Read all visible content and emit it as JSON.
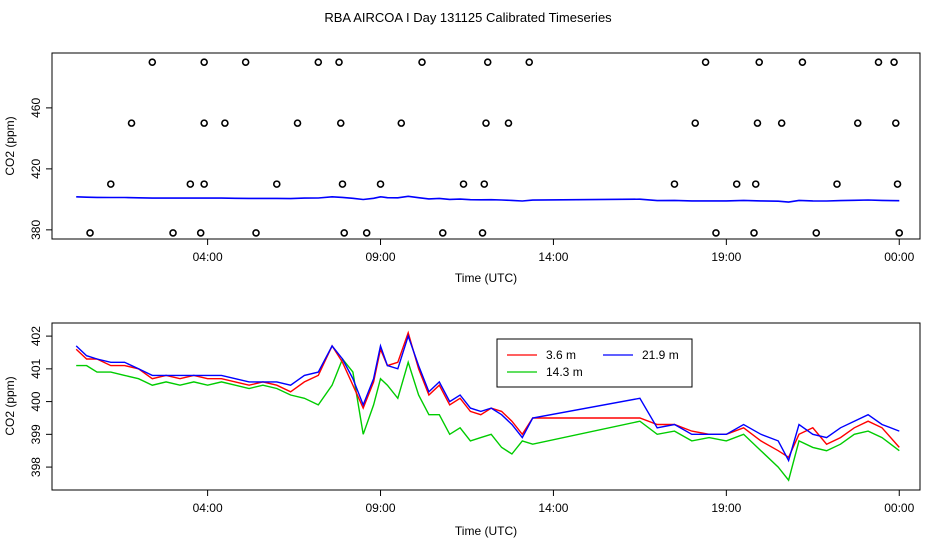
{
  "title": "RBA AIRCOA I  Day 131125  Calibrated Timeseries",
  "chart_data": [
    {
      "type": "scatter+line",
      "xlabel": "Time (UTC)",
      "ylabel": "CO2 (ppm)",
      "xlim": [
        -0.5,
        24.6
      ],
      "ylim": [
        374,
        496
      ],
      "x_ticks": [
        4,
        9,
        14,
        19,
        24
      ],
      "x_tick_labels": [
        "04:00",
        "09:00",
        "14:00",
        "19:00",
        "00:00"
      ],
      "y_ticks": [
        380,
        420,
        460
      ],
      "y_tick_labels": [
        "380",
        "420",
        "460"
      ],
      "points": [
        {
          "x": 0.6,
          "y": 378
        },
        {
          "x": 1.2,
          "y": 410
        },
        {
          "x": 1.8,
          "y": 450
        },
        {
          "x": 2.4,
          "y": 490
        },
        {
          "x": 3.0,
          "y": 378
        },
        {
          "x": 3.5,
          "y": 410
        },
        {
          "x": 3.8,
          "y": 378
        },
        {
          "x": 3.9,
          "y": 410
        },
        {
          "x": 3.9,
          "y": 450
        },
        {
          "x": 3.9,
          "y": 490
        },
        {
          "x": 4.5,
          "y": 450
        },
        {
          "x": 5.1,
          "y": 490
        },
        {
          "x": 5.4,
          "y": 378
        },
        {
          "x": 6.0,
          "y": 410
        },
        {
          "x": 6.6,
          "y": 450
        },
        {
          "x": 7.2,
          "y": 490
        },
        {
          "x": 7.8,
          "y": 490
        },
        {
          "x": 7.85,
          "y": 450
        },
        {
          "x": 7.9,
          "y": 410
        },
        {
          "x": 7.95,
          "y": 378
        },
        {
          "x": 8.6,
          "y": 378
        },
        {
          "x": 9.0,
          "y": 410
        },
        {
          "x": 9.6,
          "y": 450
        },
        {
          "x": 10.2,
          "y": 490
        },
        {
          "x": 10.8,
          "y": 378
        },
        {
          "x": 11.4,
          "y": 410
        },
        {
          "x": 12.0,
          "y": 410
        },
        {
          "x": 12.05,
          "y": 450
        },
        {
          "x": 12.1,
          "y": 490
        },
        {
          "x": 11.95,
          "y": 378
        },
        {
          "x": 12.7,
          "y": 450
        },
        {
          "x": 13.3,
          "y": 490
        },
        {
          "x": 17.5,
          "y": 410
        },
        {
          "x": 18.1,
          "y": 450
        },
        {
          "x": 18.4,
          "y": 490
        },
        {
          "x": 18.7,
          "y": 378
        },
        {
          "x": 19.3,
          "y": 410
        },
        {
          "x": 19.8,
          "y": 378
        },
        {
          "x": 19.85,
          "y": 410
        },
        {
          "x": 19.9,
          "y": 450
        },
        {
          "x": 19.95,
          "y": 490
        },
        {
          "x": 20.6,
          "y": 450
        },
        {
          "x": 21.2,
          "y": 490
        },
        {
          "x": 21.6,
          "y": 378
        },
        {
          "x": 22.2,
          "y": 410
        },
        {
          "x": 22.8,
          "y": 450
        },
        {
          "x": 23.4,
          "y": 490
        },
        {
          "x": 23.85,
          "y": 490
        },
        {
          "x": 23.9,
          "y": 450
        },
        {
          "x": 23.95,
          "y": 410
        },
        {
          "x": 24.0,
          "y": 378
        }
      ],
      "series_color": "#0000ff"
    },
    {
      "type": "line",
      "xlabel": "Time (UTC)",
      "ylabel": "CO2 (ppm)",
      "xlim": [
        -0.5,
        24.6
      ],
      "ylim": [
        397.3,
        402.4
      ],
      "x_ticks": [
        4,
        9,
        14,
        19,
        24
      ],
      "x_tick_labels": [
        "04:00",
        "09:00",
        "14:00",
        "19:00",
        "00:00"
      ],
      "y_ticks": [
        398,
        399,
        400,
        401,
        402
      ],
      "y_tick_labels": [
        "398",
        "399",
        "400",
        "401",
        "402"
      ],
      "legend": [
        {
          "label": "3.6 m",
          "color": "#ff0000"
        },
        {
          "label": "21.9 m",
          "color": "#0000ff"
        },
        {
          "label": "14.3 m",
          "color": "#00cc00"
        }
      ],
      "series": [
        {
          "name": "3.6 m",
          "color": "#ff0000",
          "x": [
            0.2,
            0.5,
            0.8,
            1.2,
            1.6,
            2.0,
            2.4,
            2.8,
            3.2,
            3.6,
            4.0,
            4.4,
            4.8,
            5.2,
            5.6,
            6.0,
            6.4,
            6.8,
            7.2,
            7.6,
            7.9,
            8.2,
            8.5,
            8.8,
            9.0,
            9.2,
            9.5,
            9.8,
            10.1,
            10.4,
            10.7,
            11.0,
            11.3,
            11.6,
            11.9,
            12.2,
            12.5,
            12.8,
            13.1,
            13.4,
            16.5,
            17.0,
            17.5,
            18.0,
            18.5,
            19.0,
            19.5,
            20.0,
            20.5,
            20.8,
            21.1,
            21.5,
            21.9,
            22.3,
            22.7,
            23.1,
            23.5,
            24.0
          ],
          "values": [
            401.6,
            401.3,
            401.3,
            401.1,
            401.1,
            401.0,
            400.7,
            400.8,
            400.7,
            400.8,
            400.7,
            400.7,
            400.6,
            400.5,
            400.6,
            400.5,
            400.3,
            400.6,
            400.8,
            401.7,
            401.2,
            400.5,
            399.8,
            400.6,
            401.6,
            401.1,
            401.2,
            402.1,
            401.0,
            400.2,
            400.5,
            399.9,
            400.1,
            399.7,
            399.6,
            399.8,
            399.7,
            399.4,
            399.0,
            399.5,
            399.5,
            399.3,
            399.3,
            399.1,
            399.0,
            399.0,
            399.2,
            398.8,
            398.5,
            398.3,
            399.0,
            399.2,
            398.7,
            398.9,
            399.2,
            399.4,
            399.2,
            398.6
          ]
        },
        {
          "name": "21.9 m",
          "color": "#0000ff",
          "x": [
            0.2,
            0.5,
            0.8,
            1.2,
            1.6,
            2.0,
            2.4,
            2.8,
            3.2,
            3.6,
            4.0,
            4.4,
            4.8,
            5.2,
            5.6,
            6.0,
            6.4,
            6.8,
            7.2,
            7.6,
            7.9,
            8.2,
            8.5,
            8.8,
            9.0,
            9.2,
            9.5,
            9.8,
            10.1,
            10.4,
            10.7,
            11.0,
            11.3,
            11.6,
            11.9,
            12.2,
            12.5,
            12.8,
            13.1,
            13.4,
            16.5,
            17.0,
            17.5,
            18.0,
            18.5,
            19.0,
            19.5,
            20.0,
            20.5,
            20.8,
            21.1,
            21.5,
            21.9,
            22.3,
            22.7,
            23.1,
            23.5,
            24.0
          ],
          "values": [
            401.7,
            401.4,
            401.3,
            401.2,
            401.2,
            401.0,
            400.8,
            400.8,
            400.8,
            400.8,
            400.8,
            400.8,
            400.7,
            400.6,
            400.6,
            400.6,
            400.5,
            400.8,
            400.9,
            401.7,
            401.3,
            400.7,
            399.9,
            400.7,
            401.7,
            401.1,
            401.0,
            402.0,
            401.1,
            400.3,
            400.6,
            400.0,
            400.2,
            399.8,
            399.7,
            399.8,
            399.6,
            399.3,
            398.9,
            399.5,
            400.1,
            399.2,
            399.3,
            399.0,
            399.0,
            399.0,
            399.3,
            399.0,
            398.8,
            398.2,
            399.3,
            399.0,
            398.9,
            399.2,
            399.4,
            399.6,
            399.3,
            399.1
          ]
        },
        {
          "name": "14.3 m",
          "color": "#00cc00",
          "x": [
            0.2,
            0.5,
            0.8,
            1.2,
            1.6,
            2.0,
            2.4,
            2.8,
            3.2,
            3.6,
            4.0,
            4.4,
            4.8,
            5.2,
            5.6,
            6.0,
            6.4,
            6.8,
            7.2,
            7.6,
            7.9,
            8.2,
            8.5,
            8.8,
            9.0,
            9.2,
            9.5,
            9.8,
            10.1,
            10.4,
            10.7,
            11.0,
            11.3,
            11.6,
            11.9,
            12.2,
            12.5,
            12.8,
            13.1,
            13.4,
            16.5,
            17.0,
            17.5,
            18.0,
            18.5,
            19.0,
            19.5,
            20.0,
            20.5,
            20.8,
            21.1,
            21.5,
            21.9,
            22.3,
            22.7,
            23.1,
            23.5,
            24.0
          ],
          "values": [
            401.1,
            401.1,
            400.9,
            400.9,
            400.8,
            400.7,
            400.5,
            400.6,
            400.5,
            400.6,
            400.5,
            400.6,
            400.5,
            400.4,
            400.5,
            400.4,
            400.2,
            400.1,
            399.9,
            400.5,
            401.3,
            400.9,
            399.0,
            399.9,
            400.7,
            400.5,
            400.1,
            401.2,
            400.2,
            399.6,
            399.6,
            399.0,
            399.2,
            398.8,
            398.9,
            399.0,
            398.6,
            398.4,
            398.8,
            398.7,
            399.4,
            399.0,
            399.1,
            398.8,
            398.9,
            398.8,
            399.0,
            398.5,
            398.0,
            397.6,
            398.8,
            398.6,
            398.5,
            398.7,
            399.0,
            399.1,
            398.9,
            398.5
          ]
        }
      ]
    }
  ]
}
